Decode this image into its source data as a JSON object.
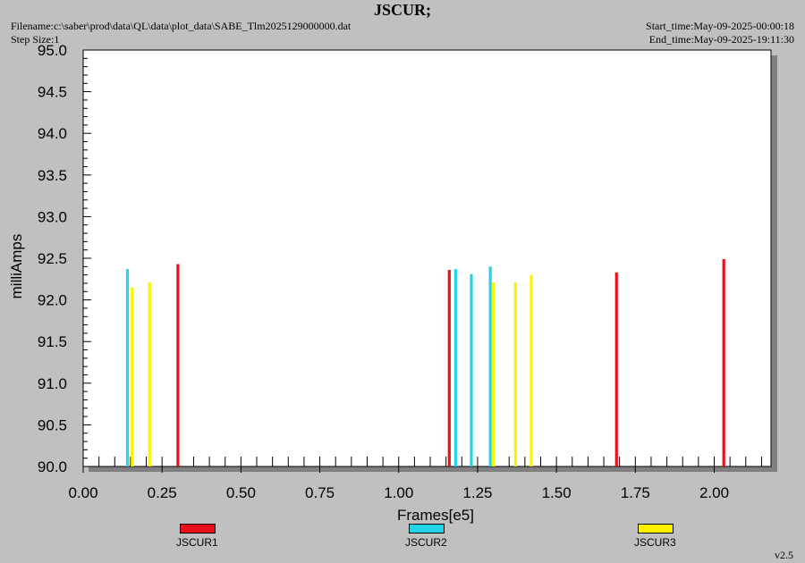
{
  "header": {
    "title": "JSCUR;",
    "filename": "Filename:c:\\saber\\prod\\data\\QL\\data\\plot_data\\SABE_Tlm2025129000000.dat",
    "step_size": "Step Size:1",
    "start_time": "Start_time:May-09-2025-00:00:18",
    "end_time": "End_time:May-09-2025-19:11:30"
  },
  "version": "v2.5",
  "colors": {
    "background": "#c0c0c0",
    "plot_area": "#ffffff",
    "JSCUR1": "#e8101a",
    "JSCUR2": "#22d4e8",
    "JSCUR3": "#fff200"
  },
  "chart_data": {
    "type": "bar",
    "title": "JSCUR;",
    "xlabel": "Frames[e5]",
    "ylabel": "milliAmps",
    "xlim": [
      0,
      2.18
    ],
    "ylim": [
      90.0,
      95.0
    ],
    "xticks": [
      "0.00",
      "0.25",
      "0.50",
      "0.75",
      "1.00",
      "1.25",
      "1.50",
      "1.75",
      "2.00"
    ],
    "yticks": [
      "90.0",
      "90.5",
      "91.0",
      "91.5",
      "92.0",
      "92.5",
      "93.0",
      "93.5",
      "94.0",
      "94.5",
      "95.0"
    ],
    "legend_position": "bottom",
    "grid": false,
    "series": [
      {
        "name": "JSCUR1",
        "color": "#e8101a",
        "x": [
          0.3,
          1.16,
          1.69,
          2.03
        ],
        "y": [
          92.43,
          92.36,
          92.33,
          92.49
        ]
      },
      {
        "name": "JSCUR2",
        "color": "#22d4e8",
        "x": [
          0.14,
          1.18,
          1.23,
          1.29
        ],
        "y": [
          92.37,
          92.37,
          92.31,
          92.4
        ]
      },
      {
        "name": "JSCUR3",
        "color": "#fff200",
        "x": [
          0.155,
          0.21,
          1.3,
          1.37,
          1.42
        ],
        "y": [
          92.15,
          92.21,
          92.21,
          92.21,
          92.3
        ]
      }
    ]
  }
}
